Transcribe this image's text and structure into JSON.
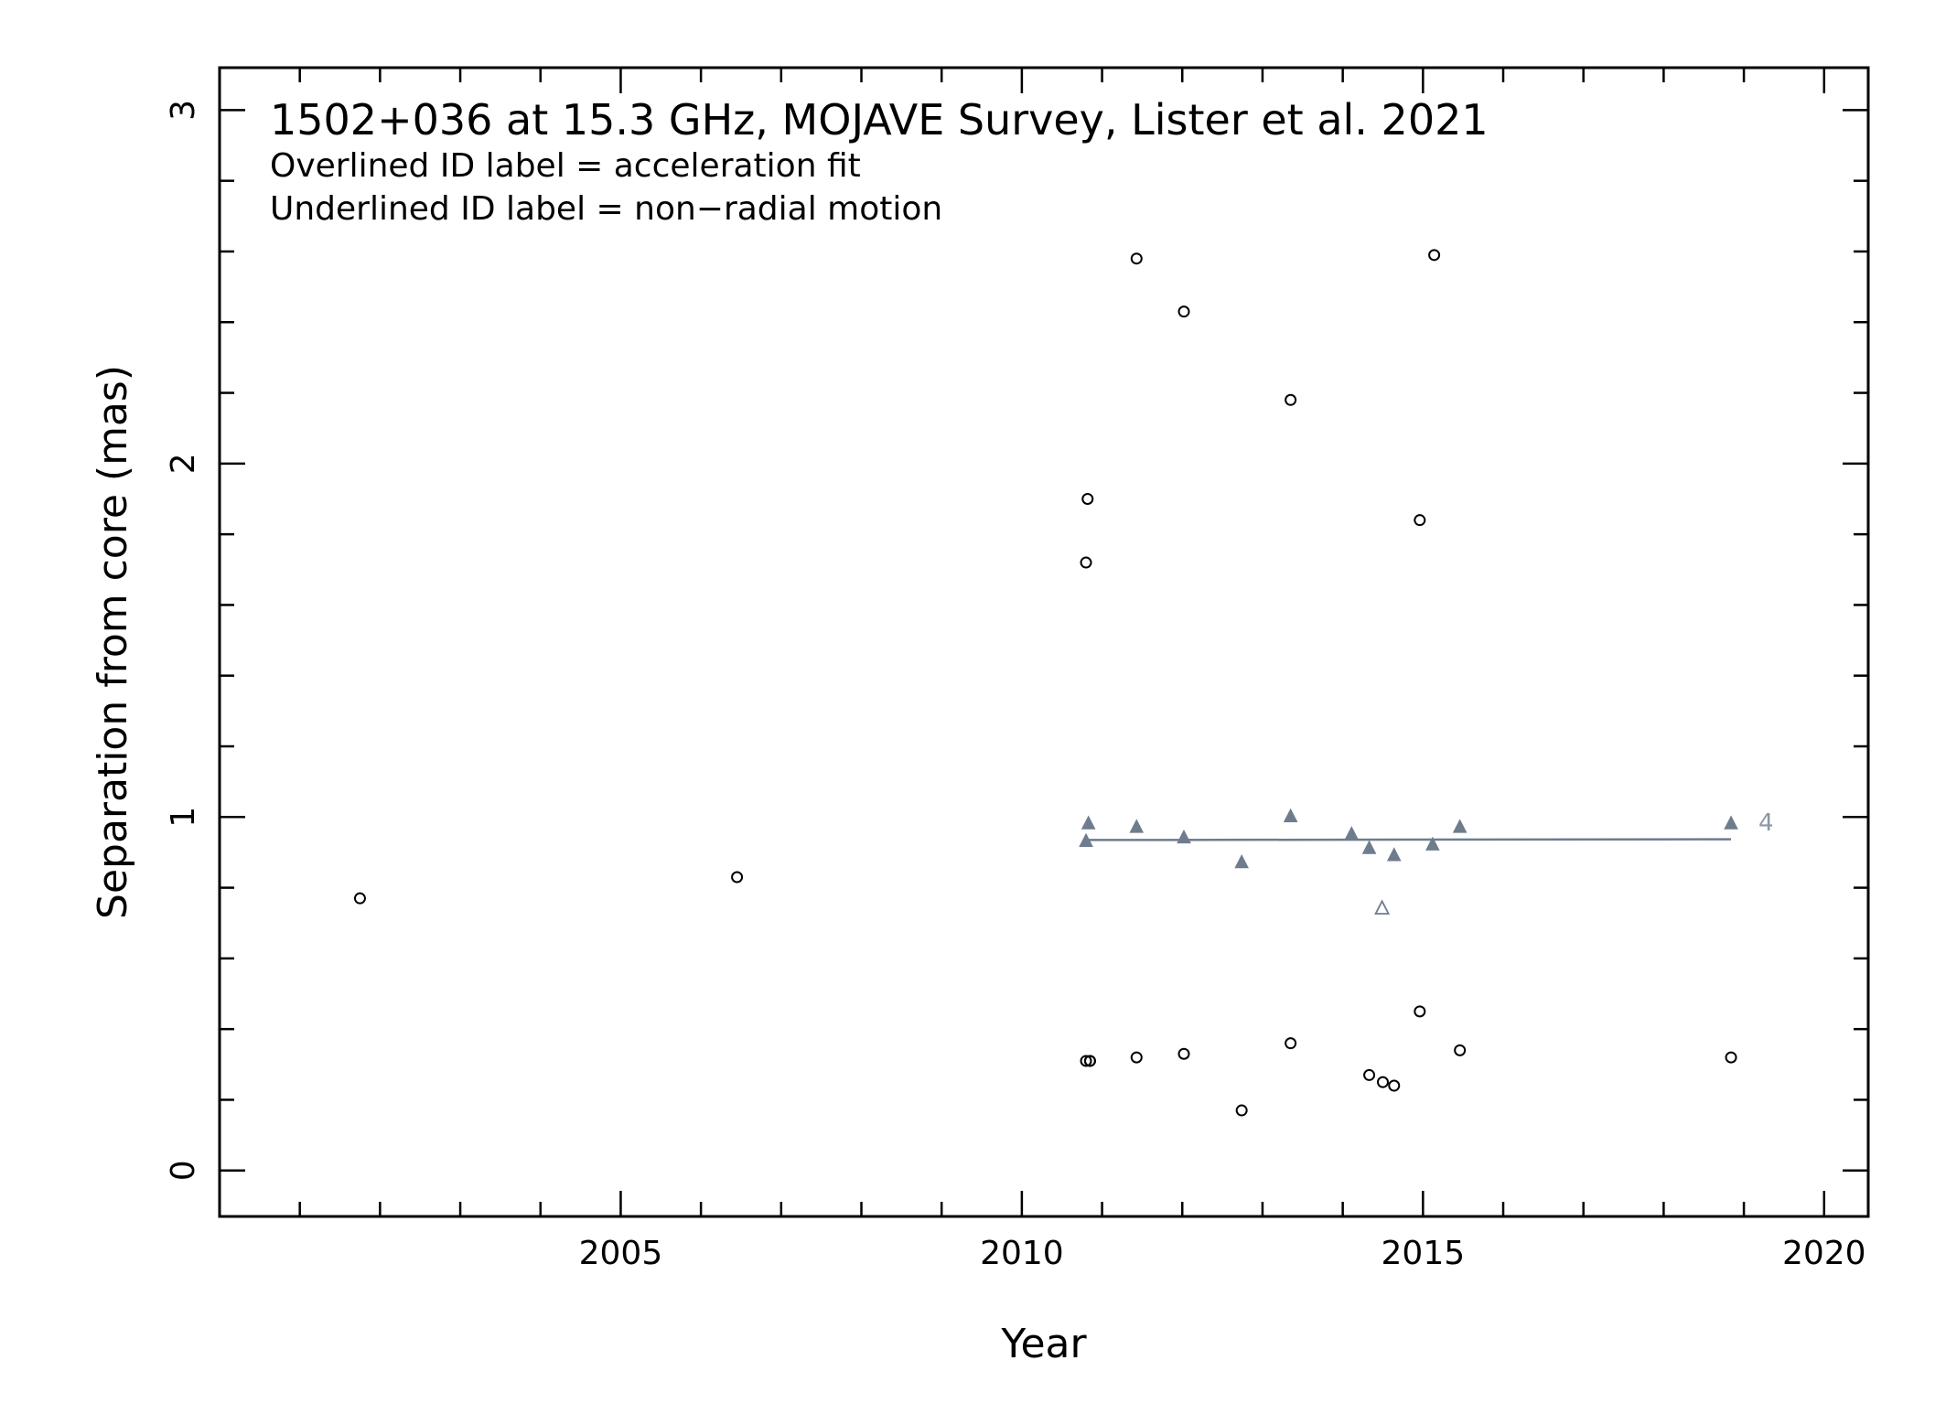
{
  "chart_data": {
    "type": "scatter",
    "title": "1502+036 at 15.3 GHz, MOJAVE Survey, Lister et al. 2021",
    "notes": [
      "Overlined ID label = acceleration fit",
      "Underlined ID label = non−radial motion"
    ],
    "xlabel": "Year",
    "ylabel": "Separation from core (mas)",
    "xlim": [
      2000.0,
      2020.55
    ],
    "ylim": [
      -0.13,
      3.12
    ],
    "x_ticks": [
      "2005",
      "2010",
      "2015",
      "2020"
    ],
    "y_ticks": [
      "0",
      "1",
      "2",
      "3"
    ],
    "colors": {
      "component": "#6e7c8e",
      "open_marker": "#000000",
      "label": "#8b97a5"
    },
    "series": [
      {
        "marker": "open-circle",
        "x": [
          2001.75,
          2006.45,
          2010.8,
          2010.82,
          2010.85,
          2011.43,
          2012.02,
          2013.35,
          2014.96,
          2015.14,
          2010.8,
          2010.85,
          2011.43,
          2012.02,
          2012.74,
          2013.35,
          2014.33,
          2014.5,
          2014.64,
          2014.96,
          2015.46,
          2018.84
        ],
        "y": [
          0.77,
          0.83,
          1.72,
          1.9,
          0.31,
          2.58,
          2.43,
          2.18,
          1.84,
          2.59,
          0.31,
          0.31,
          0.32,
          0.33,
          0.17,
          0.36,
          0.27,
          0.25,
          0.24,
          0.45,
          0.34,
          0.32
        ]
      },
      {
        "marker": "filled-triangle",
        "component_id": "4",
        "x": [
          2010.8,
          2010.83,
          2011.43,
          2012.02,
          2012.74,
          2013.35,
          2014.11,
          2014.33,
          2014.64,
          2015.12,
          2015.46,
          2018.84
        ],
        "y": [
          0.93,
          0.98,
          0.97,
          0.94,
          0.87,
          1.0,
          0.95,
          0.91,
          0.89,
          0.92,
          0.97,
          0.98
        ],
        "fit": {
          "x": [
            2010.8,
            2018.84
          ],
          "y": [
            0.935,
            0.937
          ]
        }
      },
      {
        "marker": "open-triangle",
        "x": [
          2014.49
        ],
        "y": [
          0.74
        ]
      }
    ]
  }
}
